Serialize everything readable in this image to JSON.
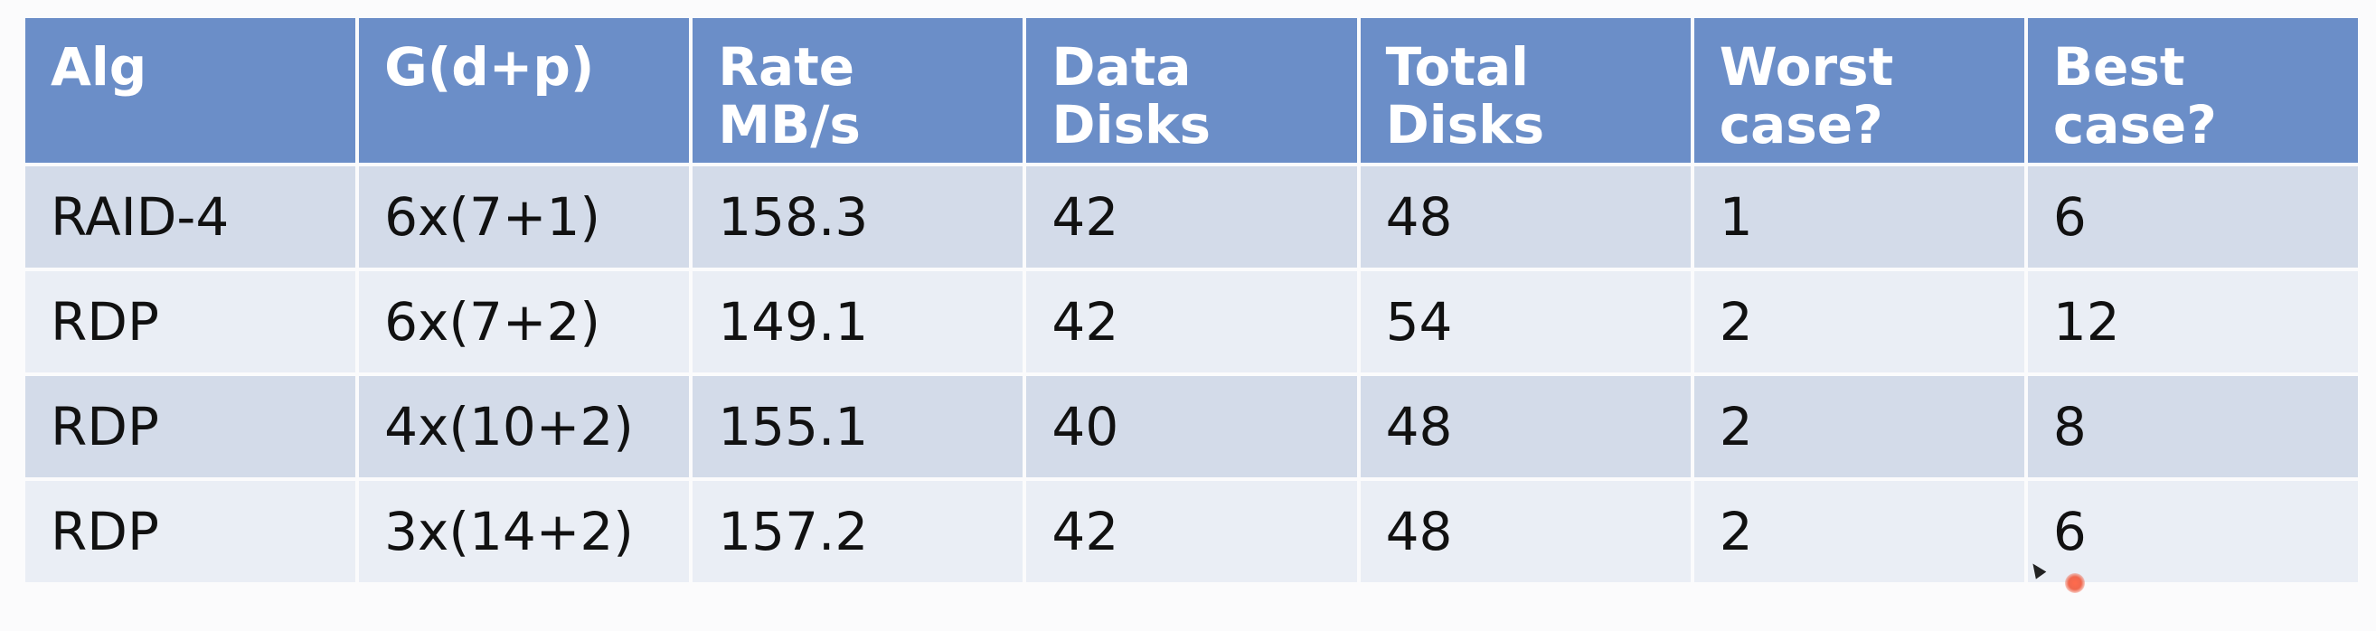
{
  "table": {
    "headers": [
      [
        "Alg"
      ],
      [
        "G(d+p)"
      ],
      [
        "Rate",
        "MB/s"
      ],
      [
        "Data",
        "Disks"
      ],
      [
        "Total",
        "Disks"
      ],
      [
        "Worst",
        "case?"
      ],
      [
        "Best",
        "case?"
      ]
    ],
    "rows": [
      [
        "RAID-4",
        "6x(7+1)",
        "158.3",
        "42",
        "48",
        "1",
        "6"
      ],
      [
        "RDP",
        "6x(7+2)",
        "149.1",
        "42",
        "54",
        "2",
        "12"
      ],
      [
        "RDP",
        "4x(10+2)",
        "155.1",
        "40",
        "48",
        "2",
        "8"
      ],
      [
        "RDP",
        "3x(14+2)",
        "157.2",
        "42",
        "48",
        "2",
        "6"
      ]
    ]
  },
  "colors": {
    "header_bg": "#6b8ec8",
    "row_odd_bg": "#d3dbe9",
    "row_even_bg": "#eaeef5",
    "pointer": "#f0684e"
  },
  "icons": {
    "cursor": "mouse-cursor-icon",
    "pointer": "laser-pointer-icon"
  }
}
